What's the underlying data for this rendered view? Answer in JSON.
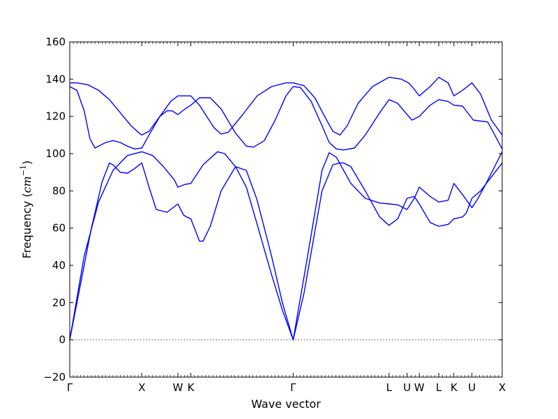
{
  "chart_data": {
    "type": "line",
    "xlabel": "Wave vector",
    "ylabel_text": "Frequency (",
    "ylabel_math": "cm",
    "ylabel_sup": "−1",
    "ylabel_close": ")",
    "ylim": [
      -20,
      160
    ],
    "yticks": [
      -20,
      0,
      20,
      40,
      60,
      80,
      100,
      120,
      140,
      160
    ],
    "grid": false,
    "line_color": "#0000ff",
    "zero_reference_line": true,
    "high_symmetry_points": [
      {
        "label": "Γ",
        "pos": 0.0
      },
      {
        "label": "X",
        "pos": 1.0
      },
      {
        "label": "W",
        "pos": 1.5
      },
      {
        "label": "K",
        "pos": 1.68
      },
      {
        "label": "Γ",
        "pos": 3.1
      },
      {
        "label": "L",
        "pos": 4.43
      },
      {
        "label": "U",
        "pos": 4.68
      },
      {
        "label": "W",
        "pos": 4.85
      },
      {
        "label": "L",
        "pos": 5.12
      },
      {
        "label": "K",
        "pos": 5.33
      },
      {
        "label": "U",
        "pos": 5.58
      },
      {
        "label": "X",
        "pos": 6.0
      }
    ],
    "series": [
      {
        "x": [
          0,
          0.15,
          0.3,
          0.45,
          0.55,
          0.6,
          0.7,
          0.8,
          0.9,
          1.0,
          1.1,
          1.2,
          1.35,
          1.5,
          1.58,
          1.62,
          1.68,
          1.8,
          1.85,
          1.95,
          2.1,
          2.3,
          2.45,
          2.6,
          2.8,
          2.95,
          3.1,
          3.25,
          3.5,
          3.65,
          3.75,
          3.8,
          3.9,
          4.1,
          4.3,
          4.43,
          4.55,
          4.68,
          4.78,
          4.85,
          5.0,
          5.12,
          5.25,
          5.33,
          5.45,
          5.5,
          5.58,
          5.7,
          5.8,
          6.0
        ],
        "y": [
          0,
          30,
          60,
          85,
          95,
          94,
          90,
          89.5,
          92,
          95,
          82,
          70,
          68.5,
          73,
          67,
          66,
          65,
          53,
          53,
          61,
          80,
          93,
          91,
          75,
          45,
          20,
          0,
          25,
          80,
          94,
          95,
          95,
          93,
          80,
          66,
          61.5,
          65,
          76,
          77,
          73,
          63,
          61,
          62,
          65,
          66,
          68,
          76,
          80,
          85,
          95
        ]
      },
      {
        "x": [
          0,
          0.2,
          0.4,
          0.6,
          0.8,
          1.0,
          1.15,
          1.3,
          1.45,
          1.5,
          1.6,
          1.68,
          1.85,
          2.05,
          2.15,
          2.3,
          2.45,
          2.6,
          2.8,
          2.95,
          3.1,
          3.3,
          3.5,
          3.6,
          3.7,
          3.8,
          3.9,
          4.1,
          4.3,
          4.43,
          4.55,
          4.68,
          4.78,
          4.85,
          5.0,
          5.12,
          5.25,
          5.33,
          5.45,
          5.58,
          5.65,
          5.75,
          6.0
        ],
        "y": [
          0,
          45,
          74,
          91,
          99,
          101,
          99,
          93,
          86,
          82,
          83.5,
          84,
          94,
          101,
          100,
          93,
          82,
          62,
          35,
          16,
          0,
          45,
          91,
          100.5,
          98,
          91,
          84,
          76,
          73.5,
          73,
          72.5,
          70,
          76,
          82,
          77,
          74,
          75,
          84,
          78,
          71,
          75,
          82,
          101
        ]
      },
      {
        "x": [
          0,
          0.1,
          0.2,
          0.28,
          0.35,
          0.5,
          0.6,
          0.7,
          0.8,
          0.9,
          1.0,
          1.1,
          1.25,
          1.35,
          1.42,
          1.5,
          1.6,
          1.68,
          1.8,
          1.95,
          2.1,
          2.3,
          2.45,
          2.55,
          2.7,
          2.85,
          3.0,
          3.1,
          3.2,
          3.35,
          3.5,
          3.6,
          3.7,
          3.8,
          3.95,
          4.1,
          4.3,
          4.43,
          4.55,
          4.68,
          4.75,
          4.85,
          5.0,
          5.12,
          5.25,
          5.33,
          5.45,
          5.6,
          5.8,
          6.0
        ],
        "y": [
          136,
          134,
          123,
          108,
          103,
          106,
          107,
          106,
          104,
          102.5,
          103,
          110,
          120,
          123,
          123,
          121,
          124,
          126,
          130,
          130,
          124,
          111,
          104,
          103.5,
          107,
          118,
          131,
          136,
          135.5,
          128,
          115,
          106,
          102.5,
          102,
          103,
          110,
          122,
          129,
          127,
          121,
          118,
          120,
          126,
          129,
          128,
          126,
          125.5,
          118,
          117,
          102.5
        ]
      },
      {
        "x": [
          0,
          0.1,
          0.25,
          0.4,
          0.55,
          0.7,
          0.85,
          0.95,
          1.0,
          1.1,
          1.25,
          1.4,
          1.5,
          1.58,
          1.68,
          1.8,
          2.0,
          2.1,
          2.2,
          2.4,
          2.6,
          2.8,
          3.0,
          3.1,
          3.25,
          3.4,
          3.55,
          3.65,
          3.75,
          3.85,
          4.0,
          4.2,
          4.43,
          4.6,
          4.7,
          4.75,
          4.85,
          5.0,
          5.12,
          5.25,
          5.33,
          5.45,
          5.58,
          5.7,
          5.85,
          6.0
        ],
        "y": [
          138,
          138,
          137,
          134,
          129,
          122,
          115,
          111.5,
          110,
          112,
          120,
          128,
          131,
          131,
          131,
          126,
          114,
          110.5,
          111.5,
          121,
          131,
          136,
          138,
          138,
          136.5,
          130,
          119,
          112,
          110,
          115,
          127,
          136,
          141,
          140,
          138,
          136,
          131,
          136,
          141,
          138,
          131,
          134,
          138,
          132,
          118,
          110
        ]
      }
    ]
  }
}
